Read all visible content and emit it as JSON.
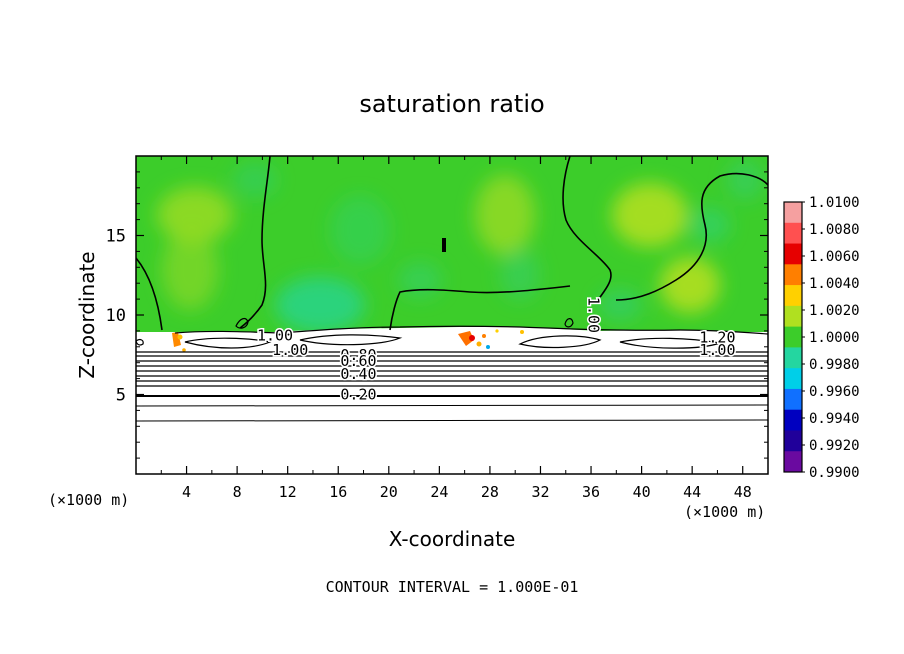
{
  "chart_data": {
    "type": "heatmap",
    "title": "saturation ratio",
    "xlabel": "X-coordinate",
    "ylabel": "Z-coordinate",
    "x_unit_left": "(×1000 m)",
    "x_unit_right": "(×1000 m)",
    "xlim": [
      0,
      50
    ],
    "ylim": [
      0,
      20
    ],
    "x_ticks": [
      "4",
      "8",
      "12",
      "16",
      "20",
      "24",
      "28",
      "32",
      "36",
      "40",
      "44",
      "48"
    ],
    "y_ticks": [
      "5",
      "10",
      "15"
    ],
    "colorbar": {
      "levels": [
        "1.0100",
        "1.0080",
        "1.0060",
        "1.0040",
        "1.0020",
        "1.0000",
        "0.9980",
        "0.9960",
        "0.9940",
        "0.9920",
        "0.9900"
      ],
      "colors": [
        "#f5a0a0",
        "#ff5050",
        "#e60000",
        "#ff7f00",
        "#ffd000",
        "#b0e020",
        "#3ccd2a",
        "#24d6a0",
        "#00cfe8",
        "#1070ff",
        "#0000c0",
        "#20009a",
        "#6a0aa0"
      ]
    },
    "contour_labels": [
      {
        "text": "1.00",
        "x": 11.0,
        "z": 8.7
      },
      {
        "text": "1.00",
        "x": 12.2,
        "z": 7.8
      },
      {
        "text": "0.80",
        "x": 17.6,
        "z": 7.5
      },
      {
        "text": "0.60",
        "x": 17.6,
        "z": 7.1
      },
      {
        "text": "0.40",
        "x": 17.6,
        "z": 6.3
      },
      {
        "text": "0.20",
        "x": 17.6,
        "z": 5.0
      },
      {
        "text": "1.00",
        "x": 36.2,
        "z": 10.0
      },
      {
        "text": "1.20",
        "x": 46.0,
        "z": 8.6
      },
      {
        "text": "1.00",
        "x": 46.0,
        "z": 7.8
      }
    ],
    "contour_interval_text": "CONTOUR INTERVAL = 1.000E-01",
    "grid": false,
    "legend": "right colorbar"
  }
}
